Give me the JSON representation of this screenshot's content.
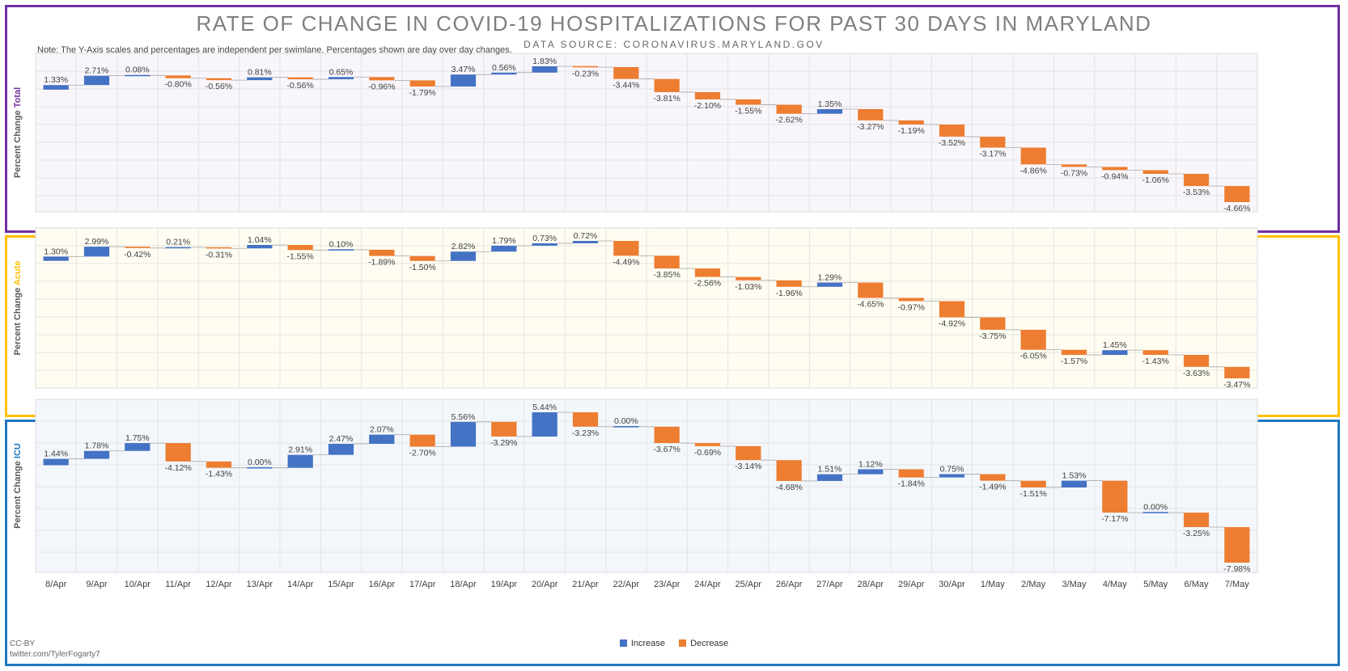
{
  "chart_data": {
    "type": "bar",
    "title": "RATE OF CHANGE IN COVID-19 HOSPITALIZATIONS FOR PAST 30 DAYS IN MARYLAND",
    "subtitle": "DATA SOURCE: CORONAVIRUS.MARYLAND.GOV",
    "note": "Note: The Y-Axis scales and percentages are independent per swimlane. Percentages shown are day over day changes.",
    "categories": [
      "8/Apr",
      "9/Apr",
      "10/Apr",
      "11/Apr",
      "12/Apr",
      "13/Apr",
      "14/Apr",
      "15/Apr",
      "16/Apr",
      "17/Apr",
      "18/Apr",
      "19/Apr",
      "20/Apr",
      "21/Apr",
      "22/Apr",
      "23/Apr",
      "24/Apr",
      "25/Apr",
      "26/Apr",
      "27/Apr",
      "28/Apr",
      "29/Apr",
      "30/Apr",
      "1/May",
      "2/May",
      "3/May",
      "4/May",
      "5/May",
      "6/May",
      "7/May"
    ],
    "legend": {
      "increase": "Increase",
      "decrease": "Decrease",
      "placement": "bottom"
    },
    "colors": {
      "increase": "#4472c4",
      "decrease": "#ed7d31",
      "total": "#7030a0",
      "acute": "#ffc000",
      "icu": "#1f78c0"
    },
    "ylabel_prefix": "Percent Change",
    "series": [
      {
        "name": "Total",
        "values": [
          1.33,
          2.71,
          0.08,
          -0.8,
          -0.56,
          0.81,
          -0.56,
          0.65,
          -0.96,
          -1.79,
          3.47,
          0.56,
          1.83,
          -0.23,
          -3.44,
          -3.81,
          -2.1,
          -1.55,
          -2.62,
          1.35,
          -3.27,
          -1.19,
          -3.52,
          -3.17,
          -4.86,
          -0.73,
          -0.94,
          -1.06,
          -3.53,
          -4.66
        ]
      },
      {
        "name": "Acute",
        "values": [
          1.3,
          2.99,
          -0.42,
          0.21,
          -0.31,
          1.04,
          -1.55,
          0.1,
          -1.89,
          -1.5,
          2.82,
          1.79,
          0.73,
          0.72,
          -4.49,
          -3.85,
          -2.56,
          -1.03,
          -1.96,
          1.29,
          -4.65,
          -0.97,
          -4.92,
          -3.75,
          -6.05,
          -1.57,
          1.45,
          -1.43,
          -3.63,
          -3.47
        ]
      },
      {
        "name": "ICU",
        "values": [
          1.44,
          1.78,
          1.75,
          -4.12,
          -1.43,
          0.0,
          2.91,
          2.47,
          2.07,
          -2.7,
          5.56,
          -3.29,
          5.44,
          -3.23,
          0.0,
          -3.67,
          -0.69,
          -3.14,
          -4.68,
          1.51,
          1.12,
          -1.84,
          0.75,
          -1.49,
          -1.51,
          1.53,
          -7.17,
          0.0,
          -3.25,
          -7.98
        ]
      }
    ],
    "credit": [
      "CC-BY",
      "twitter.com/TylerFogarty7"
    ]
  }
}
